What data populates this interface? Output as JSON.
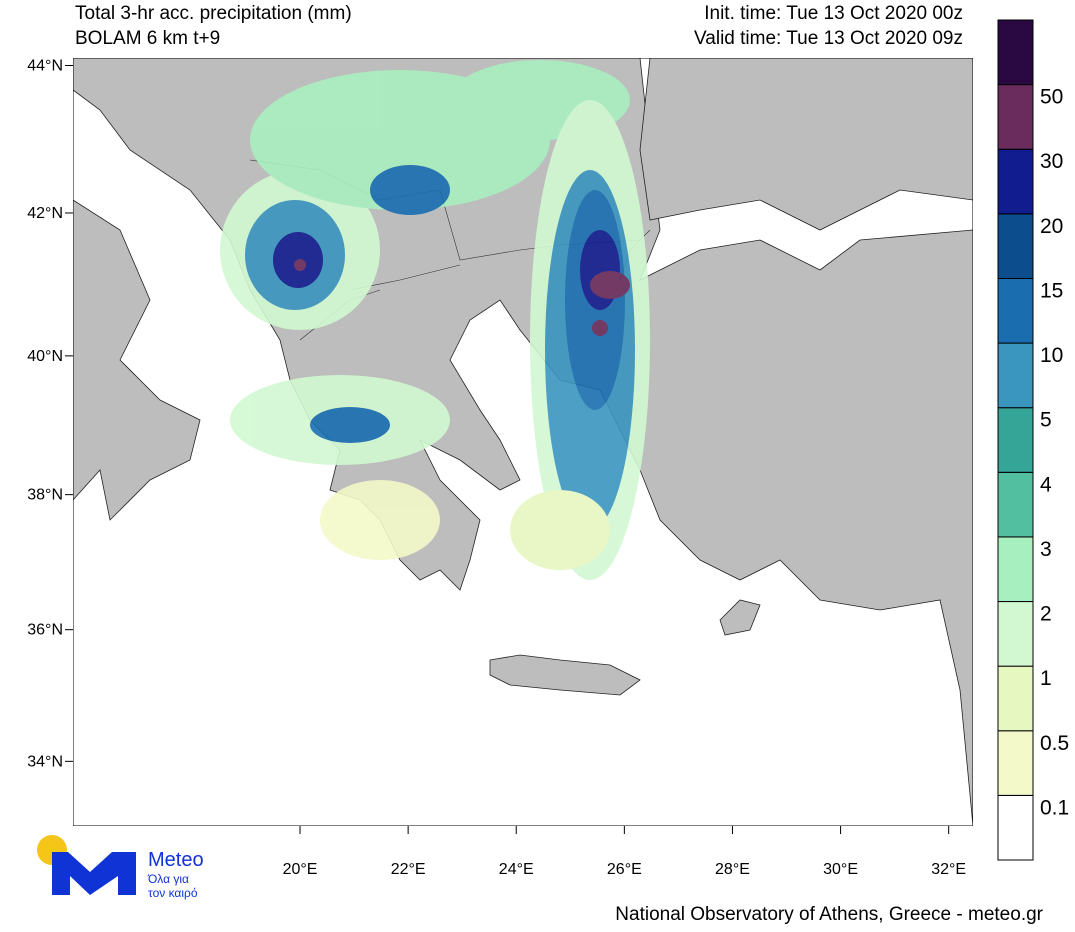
{
  "header": {
    "title": "Total 3-hr acc. precipitation (mm)",
    "subtitle": "BOLAM 6 km t+9",
    "init_time": "Init. time: Tue 13 Oct 2020 00z",
    "valid_time": "Valid time: Tue 13 Oct 2020 09z"
  },
  "map": {
    "projection": "mercator",
    "xlim": [
      15.8,
      32.45
    ],
    "ylim": [
      33.0,
      44.1
    ],
    "xticks": [
      {
        "value": 20,
        "label": "20°E"
      },
      {
        "value": 22,
        "label": "22°E"
      },
      {
        "value": 24,
        "label": "24°E"
      },
      {
        "value": 26,
        "label": "26°E"
      },
      {
        "value": 28,
        "label": "28°E"
      },
      {
        "value": 30,
        "label": "30°E"
      },
      {
        "value": 32,
        "label": "32°E"
      }
    ],
    "yticks": [
      {
        "value": 34,
        "label": "34°N"
      },
      {
        "value": 36,
        "label": "36°N"
      },
      {
        "value": 38,
        "label": "38°N"
      },
      {
        "value": 40,
        "label": "40°N"
      },
      {
        "value": 42,
        "label": "42°N"
      },
      {
        "value": 44,
        "label": "44°N"
      }
    ]
  },
  "colorbar": {
    "levels": [
      0.1,
      0.5,
      1,
      2,
      3,
      4,
      5,
      10,
      15,
      20,
      30,
      50
    ],
    "colors": [
      "#ffffff",
      "#f3f9c9",
      "#e6f7bf",
      "#d2f8d2",
      "#a8efbf",
      "#52bfa0",
      "#34a596",
      "#3a95bf",
      "#1a6eb0",
      "#0c4d8e",
      "#111c8e",
      "#6a2c5c",
      "#2a0842"
    ]
  },
  "logo": {
    "name": "Meteo",
    "tagline_1": "Όλα για",
    "tagline_2": "τον καιρό"
  },
  "footer": "National Observatory of Athens, Greece - meteo.gr"
}
